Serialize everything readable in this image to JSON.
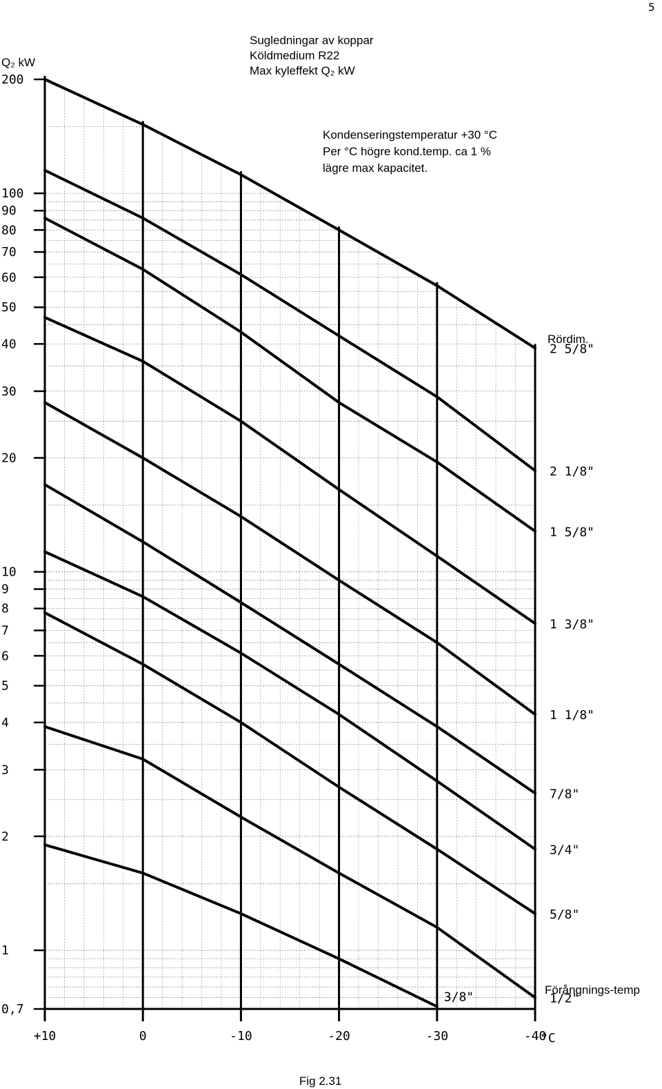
{
  "page_number": "5",
  "figure_caption": "Fig 2.31",
  "title_lines": [
    "Sugledningar av koppar",
    "Köldmedium R22",
    "Max kyleffekt Q₂ kW"
  ],
  "note_lines": [
    "Kondenseringstemperatur +30 °C",
    "Per °C högre kond.temp. ca 1 %",
    "lägre max  kapacitet."
  ],
  "chart_data": {
    "type": "line",
    "title": "Sugledningar av koppar / Köldmedium R22 / Max kyleffekt Q2 kW",
    "ylabel": "Q₂ kW",
    "xlabel": "Förångnings-temp",
    "xunit": "°C",
    "yscale": "log",
    "xlim": [
      10,
      -40
    ],
    "ylim": [
      0.7,
      200
    ],
    "x_ticks": [
      "+10",
      "0",
      "-10",
      "-20",
      "-30",
      "-40"
    ],
    "y_ticks": [
      "200",
      "100",
      "90",
      "80",
      "70",
      "60",
      "50",
      "40",
      "30",
      "20",
      "10",
      "9",
      "8",
      "7",
      "6",
      "5",
      "4",
      "3",
      "2",
      "1",
      "0,7"
    ],
    "legend_title": "Rördim.",
    "legend_position": "right",
    "grid": true,
    "series": [
      {
        "name": "2 5/8\"",
        "points": [
          [
            10,
            200
          ],
          [
            0,
            152
          ],
          [
            -10,
            112
          ],
          [
            -20,
            80
          ],
          [
            -30,
            57
          ],
          [
            -40,
            39
          ]
        ]
      },
      {
        "name": "2 1/8\"",
        "points": [
          [
            10,
            115
          ],
          [
            0,
            86
          ],
          [
            -10,
            61
          ],
          [
            -20,
            42
          ],
          [
            -30,
            29
          ],
          [
            -40,
            18.5
          ]
        ]
      },
      {
        "name": "1 5/8\"",
        "points": [
          [
            10,
            86
          ],
          [
            0,
            63
          ],
          [
            -10,
            43
          ],
          [
            -20,
            28
          ],
          [
            -30,
            19.5
          ],
          [
            -40,
            12.8
          ]
        ]
      },
      {
        "name": "1 3/8\"",
        "points": [
          [
            10,
            47
          ],
          [
            0,
            36
          ],
          [
            -10,
            25
          ],
          [
            -20,
            16.5
          ],
          [
            -30,
            11
          ],
          [
            -40,
            7.3
          ]
        ]
      },
      {
        "name": "1 1/8\"",
        "points": [
          [
            10,
            28
          ],
          [
            0,
            20
          ],
          [
            -10,
            14
          ],
          [
            -20,
            9.5
          ],
          [
            -30,
            6.5
          ],
          [
            -40,
            4.2
          ]
        ]
      },
      {
        "name": "7/8\"",
        "points": [
          [
            10,
            17
          ],
          [
            0,
            12
          ],
          [
            -10,
            8.3
          ],
          [
            -20,
            5.7
          ],
          [
            -30,
            3.9
          ],
          [
            -40,
            2.6
          ]
        ]
      },
      {
        "name": "3/4\"",
        "points": [
          [
            10,
            11.3
          ],
          [
            0,
            8.6
          ],
          [
            -10,
            6.1
          ],
          [
            -20,
            4.2
          ],
          [
            -30,
            2.8
          ],
          [
            -40,
            1.85
          ]
        ]
      },
      {
        "name": "5/8\"",
        "points": [
          [
            10,
            7.8
          ],
          [
            0,
            5.7
          ],
          [
            -10,
            4.0
          ],
          [
            -20,
            2.7
          ],
          [
            -30,
            1.85
          ],
          [
            -40,
            1.25
          ]
        ]
      },
      {
        "name": "1/2\"",
        "points": [
          [
            10,
            3.9
          ],
          [
            0,
            3.2
          ],
          [
            -10,
            2.25
          ],
          [
            -20,
            1.6
          ],
          [
            -30,
            1.15
          ],
          [
            -40,
            0.75
          ]
        ]
      },
      {
        "name": "3/8\"",
        "points": [
          [
            10,
            1.9
          ],
          [
            0,
            1.6
          ],
          [
            -10,
            1.25
          ],
          [
            -20,
            0.95
          ],
          [
            -30,
            0.71
          ]
        ]
      }
    ]
  }
}
